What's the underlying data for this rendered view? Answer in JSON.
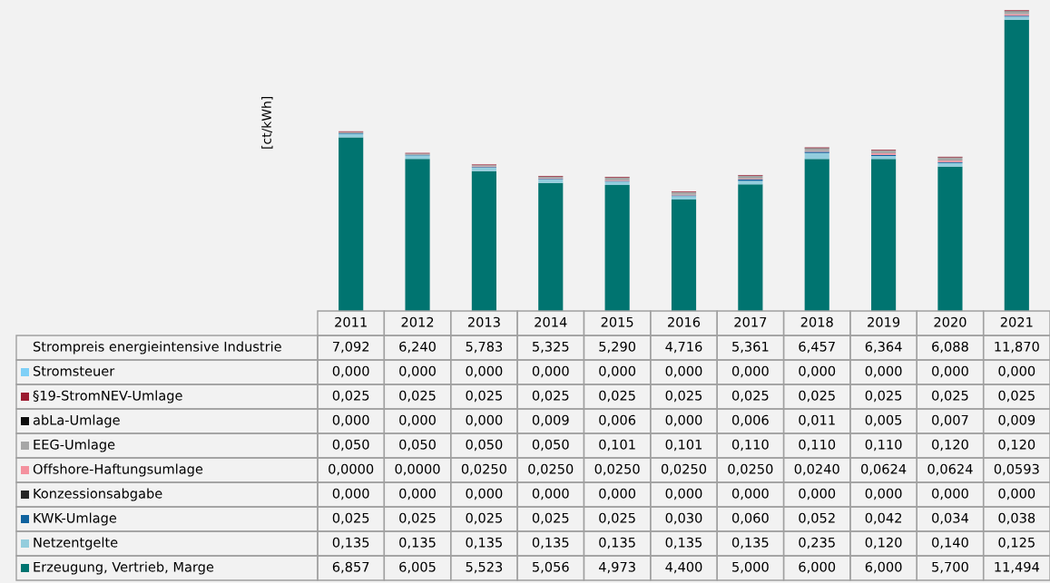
{
  "chart_data": {
    "type": "bar",
    "stacked": true,
    "ylabel": "[ct/kWh]",
    "categories": [
      "2011",
      "2012",
      "2013",
      "2014",
      "2015",
      "2016",
      "2017",
      "2018",
      "2019",
      "2020",
      "2021"
    ],
    "series": [
      {
        "name": "Erzeugung, Vertrieb, Marge",
        "color": "#007470",
        "values": [
          6.857,
          6.005,
          5.523,
          5.056,
          4.973,
          4.4,
          5.0,
          6.0,
          6.0,
          5.7,
          11.494
        ],
        "value_labels": [
          "6,857",
          "6,005",
          "5,523",
          "5,056",
          "4,973",
          "4,400",
          "5,000",
          "6,000",
          "6,000",
          "5,700",
          "11,494"
        ]
      },
      {
        "name": "Netzentgelte",
        "color": "#93cddd",
        "values": [
          0.135,
          0.135,
          0.135,
          0.135,
          0.135,
          0.135,
          0.135,
          0.235,
          0.12,
          0.14,
          0.125
        ],
        "value_labels": [
          "0,135",
          "0,135",
          "0,135",
          "0,135",
          "0,135",
          "0,135",
          "0,135",
          "0,235",
          "0,120",
          "0,140",
          "0,125"
        ]
      },
      {
        "name": "KWK-Umlage",
        "color": "#10639f",
        "values": [
          0.025,
          0.025,
          0.025,
          0.025,
          0.025,
          0.03,
          0.06,
          0.052,
          0.042,
          0.034,
          0.038
        ],
        "value_labels": [
          "0,025",
          "0,025",
          "0,025",
          "0,025",
          "0,025",
          "0,030",
          "0,060",
          "0,052",
          "0,042",
          "0,034",
          "0,038"
        ]
      },
      {
        "name": "Konzessionsabgabe",
        "color": "#262626",
        "values": [
          0,
          0,
          0,
          0,
          0,
          0,
          0,
          0,
          0,
          0,
          0
        ],
        "value_labels": [
          "0,000",
          "0,000",
          "0,000",
          "0,000",
          "0,000",
          "0,000",
          "0,000",
          "0,000",
          "0,000",
          "0,000",
          "0,000"
        ]
      },
      {
        "name": "Offshore-Haftungsumlage",
        "color": "#f4919e",
        "values": [
          0,
          0,
          0.025,
          0.025,
          0.025,
          0.025,
          0.025,
          0.024,
          0.0624,
          0.0624,
          0.0593
        ],
        "value_labels": [
          "0,0000",
          "0,0000",
          "0,0250",
          "0,0250",
          "0,0250",
          "0,0250",
          "0,0250",
          "0,0240",
          "0,0624",
          "0,0624",
          "0,0593"
        ]
      },
      {
        "name": "EEG-Umlage",
        "color": "#a6a6a6",
        "values": [
          0.05,
          0.05,
          0.05,
          0.05,
          0.101,
          0.101,
          0.11,
          0.11,
          0.11,
          0.12,
          0.12
        ],
        "value_labels": [
          "0,050",
          "0,050",
          "0,050",
          "0,050",
          "0,101",
          "0,101",
          "0,110",
          "0,110",
          "0,110",
          "0,120",
          "0,120"
        ]
      },
      {
        "name": "abLa-Umlage",
        "color": "#0d0d0d",
        "values": [
          0,
          0,
          0,
          0.009,
          0.006,
          0,
          0.006,
          0.011,
          0.005,
          0.007,
          0.009
        ],
        "value_labels": [
          "0,000",
          "0,000",
          "0,000",
          "0,009",
          "0,006",
          "0,000",
          "0,006",
          "0,011",
          "0,005",
          "0,007",
          "0,009"
        ]
      },
      {
        "name": "§19-StromNEV-Umlage",
        "color": "#9b1b30",
        "values": [
          0.025,
          0.025,
          0.025,
          0.025,
          0.025,
          0.025,
          0.025,
          0.025,
          0.025,
          0.025,
          0.025
        ],
        "value_labels": [
          "0,025",
          "0,025",
          "0,025",
          "0,025",
          "0,025",
          "0,025",
          "0,025",
          "0,025",
          "0,025",
          "0,025",
          "0,025"
        ]
      },
      {
        "name": "Stromsteuer",
        "color": "#7fd0f7",
        "values": [
          0,
          0,
          0,
          0,
          0,
          0,
          0,
          0,
          0,
          0,
          0
        ],
        "value_labels": [
          "0,000",
          "0,000",
          "0,000",
          "0,000",
          "0,000",
          "0,000",
          "0,000",
          "0,000",
          "0,000",
          "0,000",
          "0,000"
        ]
      }
    ],
    "totals": [
      "7,092",
      "6,240",
      "5,783",
      "5,325",
      "5,290",
      "4,716",
      "5,361",
      "6,457",
      "6,364",
      "6,088",
      "11,870"
    ],
    "annotations": [
      "Strompreis energieintensive Industrie"
    ],
    "legend": "bottom"
  }
}
